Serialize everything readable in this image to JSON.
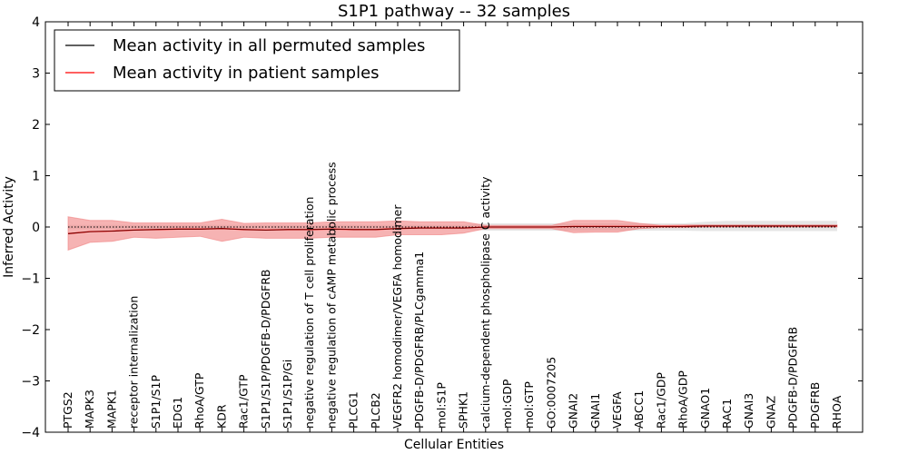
{
  "chart_data": {
    "type": "line",
    "title": "S1P1 pathway -- 32 samples",
    "xlabel": "Cellular Entities",
    "ylabel": "Inferred Activity",
    "ylim": [
      -4,
      4
    ],
    "yticks": [
      -4,
      -3,
      -2,
      -1,
      0,
      1,
      2,
      3,
      4
    ],
    "ytick_labels": [
      "−4",
      "−3",
      "−2",
      "−1",
      "0",
      "1",
      "2",
      "3",
      "4"
    ],
    "legend_position": "top-left",
    "categories": [
      "PTGS2",
      "MAPK3",
      "MAPK1",
      "receptor internalization",
      "S1P1/S1P",
      "EDG1",
      "RhoA/GTP",
      "KDR",
      "Rac1/GTP",
      "S1P1/S1P/PDGFB-D/PDGFRB",
      "S1P1/S1P/Gi",
      "negative regulation of T cell proliferation",
      "negative regulation of cAMP metabolic process",
      "PLCG1",
      "PLCB2",
      "VEGFR2 homodimer/VEGFA homodimer",
      "PDGFB-D/PDGFRB/PLCgamma1",
      "mol:S1P",
      "SPHK1",
      "calcium-dependent phospholipase C activity",
      "mol:GDP",
      "mol:GTP",
      "GO:0007205",
      "GNAI2",
      "GNAI1",
      "VEGFA",
      "ABCC1",
      "Rac1/GDP",
      "RhoA/GDP",
      "GNAO1",
      "RAC1",
      "GNAI3",
      "GNAZ",
      "PDGFB-D/PDGFRB",
      "PDGFRB",
      "RHOA"
    ],
    "series": [
      {
        "name": "Mean activity in all permuted samples",
        "color": "#000000",
        "values": [
          0.0,
          0.0,
          0.0,
          0.0,
          0.0,
          0.0,
          0.0,
          0.0,
          0.0,
          0.0,
          0.0,
          0.0,
          0.0,
          0.0,
          0.0,
          0.0,
          0.0,
          0.0,
          0.0,
          0.0,
          0.0,
          0.0,
          0.0,
          0.0,
          0.0,
          0.0,
          0.0,
          0.0,
          0.0,
          0.0,
          0.0,
          0.0,
          0.0,
          0.0,
          0.0,
          0.0
        ],
        "band_lower": [
          -0.04,
          -0.04,
          -0.04,
          -0.04,
          -0.04,
          -0.04,
          -0.04,
          -0.04,
          -0.04,
          -0.04,
          -0.04,
          -0.04,
          -0.04,
          -0.04,
          -0.04,
          -0.04,
          -0.04,
          -0.04,
          -0.04,
          -0.07,
          -0.07,
          -0.07,
          -0.07,
          -0.07,
          -0.07,
          -0.07,
          -0.07,
          -0.07,
          -0.07,
          -0.08,
          -0.08,
          -0.08,
          -0.08,
          -0.08,
          -0.08,
          -0.08
        ],
        "band_upper": [
          0.04,
          0.04,
          0.04,
          0.04,
          0.04,
          0.04,
          0.04,
          0.04,
          0.04,
          0.04,
          0.04,
          0.04,
          0.04,
          0.04,
          0.04,
          0.04,
          0.04,
          0.04,
          0.04,
          0.07,
          0.07,
          0.07,
          0.07,
          0.07,
          0.07,
          0.07,
          0.07,
          0.07,
          0.07,
          0.1,
          0.12,
          0.12,
          0.12,
          0.12,
          0.12,
          0.12
        ]
      },
      {
        "name": "Mean activity in patient samples",
        "color": "#ff0000",
        "fill": "#f08080",
        "values": [
          -0.13,
          -0.09,
          -0.08,
          -0.06,
          -0.05,
          -0.04,
          -0.04,
          -0.03,
          -0.05,
          -0.06,
          -0.05,
          -0.05,
          -0.04,
          -0.05,
          -0.05,
          -0.03,
          -0.02,
          -0.02,
          -0.02,
          0.0,
          0.0,
          0.0,
          0.0,
          0.01,
          0.01,
          0.01,
          0.01,
          0.01,
          0.01,
          0.02,
          0.02,
          0.02,
          0.02,
          0.02,
          0.02,
          0.02
        ],
        "band_lower": [
          -0.45,
          -0.3,
          -0.28,
          -0.2,
          -0.22,
          -0.2,
          -0.18,
          -0.28,
          -0.2,
          -0.22,
          -0.22,
          -0.22,
          -0.2,
          -0.2,
          -0.2,
          -0.15,
          -0.15,
          -0.15,
          -0.12,
          -0.03,
          -0.03,
          -0.03,
          -0.03,
          -0.11,
          -0.1,
          -0.1,
          -0.03,
          -0.01,
          -0.01,
          0.0,
          0.0,
          0.0,
          0.0,
          0.0,
          0.0,
          0.0
        ],
        "band_upper": [
          0.2,
          0.13,
          0.13,
          0.08,
          0.08,
          0.08,
          0.08,
          0.15,
          0.07,
          0.08,
          0.08,
          0.08,
          0.1,
          0.1,
          0.1,
          0.12,
          0.1,
          0.1,
          0.1,
          0.03,
          0.03,
          0.03,
          0.03,
          0.13,
          0.13,
          0.13,
          0.07,
          0.03,
          0.04,
          0.04,
          0.04,
          0.04,
          0.04,
          0.04,
          0.04,
          0.04
        ]
      }
    ]
  }
}
